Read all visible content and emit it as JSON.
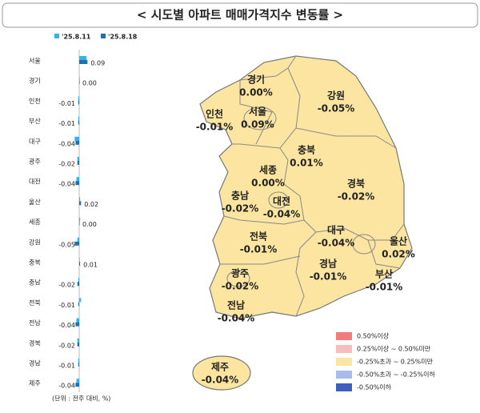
{
  "title": "< 시도별 아파트 매매가격지수 변동률 >",
  "chart_data": {
    "type": "bar",
    "orientation": "horizontal",
    "categories": [
      "서울",
      "경기",
      "인천",
      "부산",
      "대구",
      "광주",
      "대전",
      "울산",
      "세종",
      "강원",
      "충북",
      "충남",
      "전북",
      "전남",
      "경북",
      "경남",
      "제주"
    ],
    "series": [
      {
        "name": "'25.8.11",
        "color": "#33b5e8",
        "values": [
          0.08,
          0.0,
          -0.01,
          -0.01,
          -0.05,
          -0.02,
          -0.03,
          0.01,
          0.01,
          -0.02,
          0.0,
          -0.01,
          0.02,
          -0.03,
          -0.02,
          -0.01,
          -0.03
        ]
      },
      {
        "name": "'25.8.18",
        "color": "#1f6fb5",
        "values": [
          0.09,
          0.0,
          -0.01,
          -0.01,
          -0.04,
          -0.02,
          -0.04,
          0.02,
          0.0,
          -0.05,
          0.01,
          -0.02,
          -0.01,
          -0.04,
          -0.02,
          -0.01,
          -0.04
        ],
        "value_labels": [
          "0.09",
          "0.00",
          "-0.01",
          "-0.01",
          "-0.04",
          "-0.02",
          "-0.04",
          "0.02",
          "0.00",
          "-0.05",
          "0.01",
          "-0.02",
          "-0.01",
          "-0.04",
          "-0.02",
          "-0.01",
          "-0.04"
        ]
      }
    ],
    "unit_note": "(단위 : 전주 대비, %)"
  },
  "map": {
    "fill": "#fbe5a0",
    "regions": [
      {
        "name": "경기",
        "value": "0.00%"
      },
      {
        "name": "강원",
        "value": "-0.05%"
      },
      {
        "name": "인천",
        "value": "-0.01%"
      },
      {
        "name": "서울",
        "value": "0.09%"
      },
      {
        "name": "충북",
        "value": "0.01%"
      },
      {
        "name": "세종",
        "value": "0.00%"
      },
      {
        "name": "충남",
        "value": "-0.02%"
      },
      {
        "name": "대전",
        "value": "-0.04%"
      },
      {
        "name": "경북",
        "value": "-0.02%"
      },
      {
        "name": "대구",
        "value": "-0.04%"
      },
      {
        "name": "전북",
        "value": "-0.01%"
      },
      {
        "name": "울산",
        "value": "0.02%"
      },
      {
        "name": "경남",
        "value": "-0.01%"
      },
      {
        "name": "부산",
        "value": "-0.01%"
      },
      {
        "name": "광주",
        "value": "-0.02%"
      },
      {
        "name": "전남",
        "value": "-0.04%"
      },
      {
        "name": "제주",
        "value": "-0.04%"
      }
    ],
    "legend": [
      {
        "label": "0.50%이상",
        "color": "#f07c7c"
      },
      {
        "label": "0.25%이상 ~ 0.50%미만",
        "color": "#f7bcbc"
      },
      {
        "label": "-0.25%초과 ~ 0.25%미만",
        "color": "#fbe5a0"
      },
      {
        "label": "-0.50%초과 ~ -0.25%이하",
        "color": "#a9bbe9"
      },
      {
        "label": "-0.50%이하",
        "color": "#3f5fbf"
      }
    ]
  }
}
